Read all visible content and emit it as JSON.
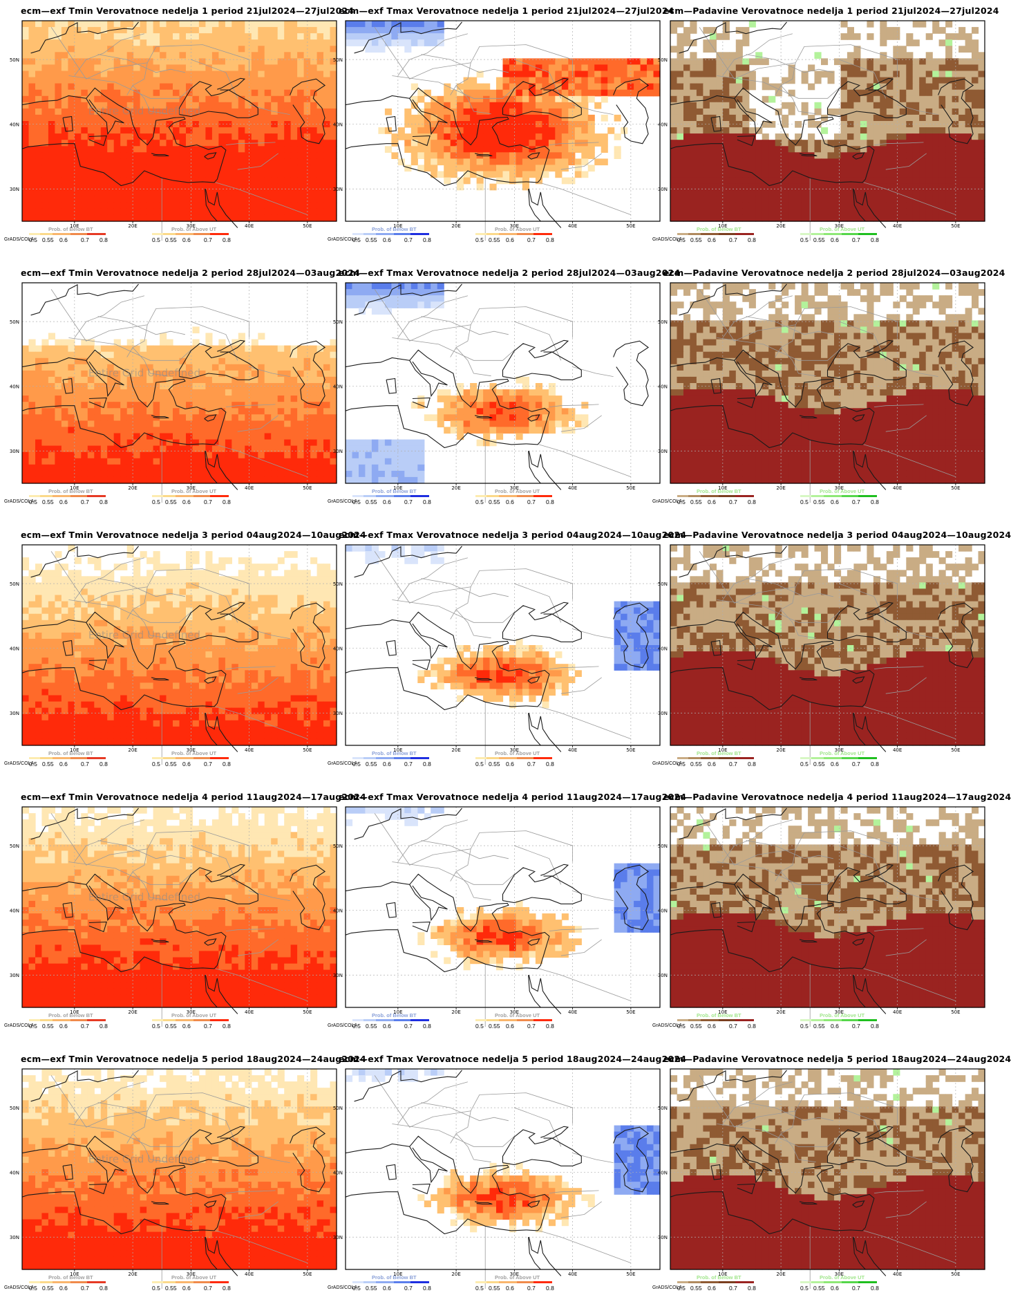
{
  "credit": "GrADS/COLA",
  "legend": {
    "below_title": "Prob. of Below BT",
    "above_title": "Prob. of Above UT",
    "below_ticks": [
      "0.5",
      "0.55",
      "0.6",
      "0.7",
      "0.8"
    ],
    "above_ticks": [
      "0.5",
      "0.55",
      "0.6",
      "0.7",
      "0.8"
    ]
  },
  "axes": {
    "lon_ticks": [
      "10E",
      "20E",
      "30E",
      "40E",
      "50E"
    ],
    "lat_ticks": [
      "50N",
      "40N",
      "30N"
    ],
    "watermark": "Entire Grid Undefined"
  },
  "palettes": {
    "tmin": {
      "below": [
        "#fdecb0",
        "#fbd98a",
        "#f9b56c",
        "#f08a4b",
        "#e63a24"
      ],
      "above": [
        "#fdecb0",
        "#fbd98a",
        "#f9b56c",
        "#f08a4b",
        "#ff2a0a"
      ],
      "levels": [
        "#ffffff",
        "#ffe7b3",
        "#ffc070",
        "#ff9a4a",
        "#ff6a2a",
        "#ff2a0a"
      ]
    },
    "tmax": {
      "below": [
        "#d9e4fb",
        "#b9cdf7",
        "#8eaaf2",
        "#5a7deb",
        "#1e2ee0"
      ],
      "above": [
        "#fdecb0",
        "#fbd98a",
        "#f9b56c",
        "#f08a4b",
        "#ff2a0a"
      ],
      "blue_levels": [
        "#ffffff",
        "#d9e4fb",
        "#b9cdf7",
        "#8eaaf2",
        "#5a7deb",
        "#1e2ee0"
      ],
      "red_levels": [
        "#ffffff",
        "#ffe7b3",
        "#ffc070",
        "#ff9a4a",
        "#ff6a2a",
        "#ff2a0a"
      ]
    },
    "precip": {
      "below": [
        "#c9ac84",
        "#b08a5e",
        "#8f5a33",
        "#7a3e1f",
        "#9a2320"
      ],
      "above": [
        "#d7f7c4",
        "#b3f29b",
        "#8ee876",
        "#55d64a",
        "#1fbf1f"
      ],
      "levels": [
        "#ffffff",
        "#c9ac84",
        "#8f5a33",
        "#7a3e1a",
        "#9a2320"
      ],
      "green": [
        "#b3f29b",
        "#55d64a"
      ]
    }
  },
  "panels": [
    {
      "title": "ecm—exf Tmin Verovatnoce nedelja 1 period 21jul2024—27jul2024",
      "type": "tmin",
      "week": 1
    },
    {
      "title": "ecm—exf Tmax Verovatnoce nedelja 1 period 21jul2024—27jul2024",
      "type": "tmax",
      "week": 1
    },
    {
      "title": "ecm—Padavine Verovatnoce nedelja 1 period 21jul2024—27jul2024",
      "type": "precip",
      "week": 1
    },
    {
      "title": "ecm—exf Tmin Verovatnoce nedelja 2 period 28jul2024—03aug2024",
      "type": "tmin",
      "week": 2
    },
    {
      "title": "ecm—exf Tmax Verovatnoce nedelja 2 period 28jul2024—03aug2024",
      "type": "tmax",
      "week": 2
    },
    {
      "title": "ecm—Padavine Verovatnoce nedelja 2 period 28jul2024—03aug2024",
      "type": "precip",
      "week": 2
    },
    {
      "title": "ecm—exf Tmin Verovatnoce nedelja 3 period 04aug2024—10aug2024",
      "type": "tmin",
      "week": 3
    },
    {
      "title": "ecm—exf Tmax Verovatnoce nedelja 3 period 04aug2024—10aug2024",
      "type": "tmax",
      "week": 3
    },
    {
      "title": "ecm—Padavine Verovatnoce nedelja 3 period 04aug2024—10aug2024",
      "type": "precip",
      "week": 3
    },
    {
      "title": "ecm—exf Tmin Verovatnoce nedelja 4 period 11aug2024—17aug2024",
      "type": "tmin",
      "week": 4
    },
    {
      "title": "ecm—exf Tmax Verovatnoce nedelja 4 period 11aug2024—17aug2024",
      "type": "tmax",
      "week": 4
    },
    {
      "title": "ecm—Padavine Verovatnoce nedelja 4 period 11aug2024—17aug2024",
      "type": "precip",
      "week": 4
    },
    {
      "title": "ecm—exf Tmin Verovatnoce nedelja 5 period 18aug2024—24aug2024",
      "type": "tmin",
      "week": 5
    },
    {
      "title": "ecm—exf Tmax Verovatnoce nedelja 5 period 18aug2024—24aug2024",
      "type": "tmax",
      "week": 5
    },
    {
      "title": "ecm—Padavine Verovatnoce nedelja 5 period 18aug2024—24aug2024",
      "type": "precip",
      "week": 5
    }
  ]
}
